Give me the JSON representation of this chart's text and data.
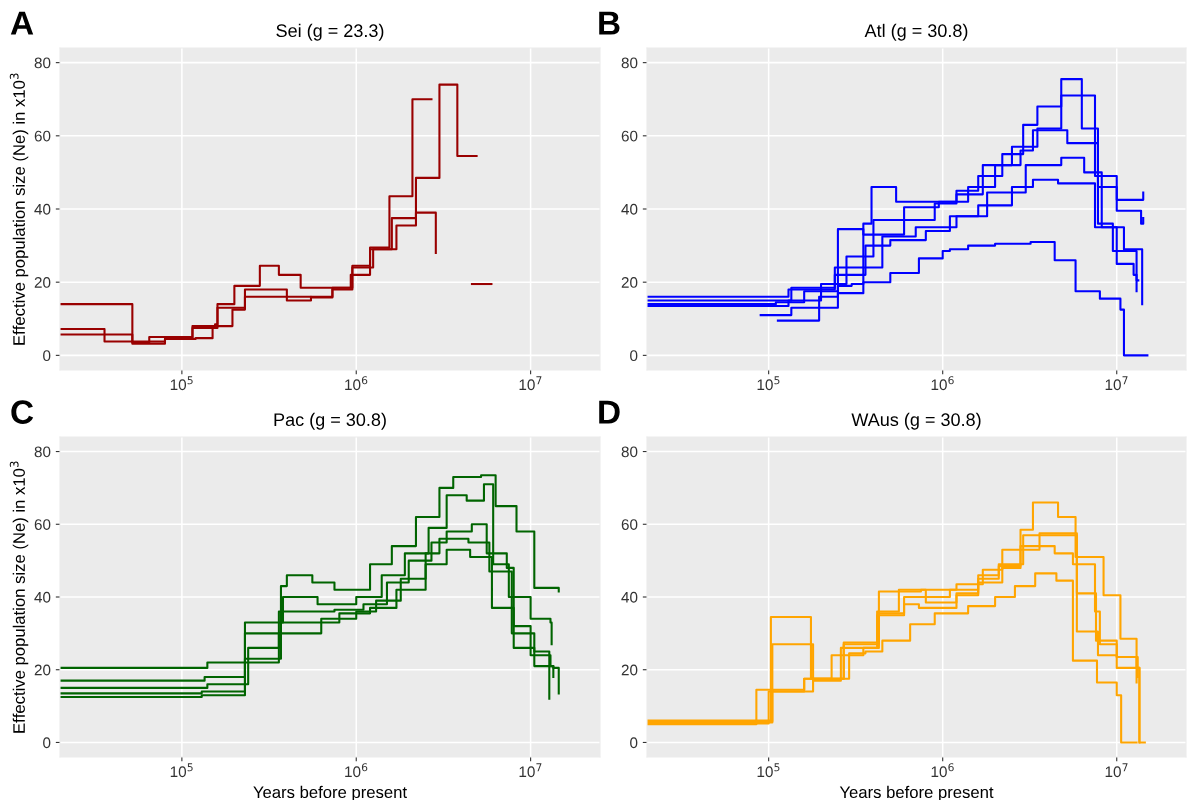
{
  "chart_data": [
    {
      "type": "step",
      "title": "Sei (g = 23.3)",
      "ylabel": "Effective population size (Ne) in x10$^{3}$",
      "annotations": [
        "A"
      ],
      "log": "x",
      "grid": true,
      "legend": false,
      "xlim": [
        20000,
        25000000
      ],
      "ylim": [
        -4,
        84
      ],
      "xticks": [
        {
          "value": 100000,
          "label": "10$^{5}$"
        },
        {
          "value": 1000000,
          "label": "10$^{6}$"
        },
        {
          "value": 10000000,
          "label": "10$^{7}$"
        }
      ],
      "yticks": [
        0,
        20,
        40,
        60,
        80
      ],
      "series": [
        {
          "color": "#990000",
          "x": [
            20000,
            52000,
            65000,
            115000,
            160000,
            200000,
            280000,
            360000,
            480000,
            730000,
            950000,
            1200000,
            1550000,
            2100000,
            2700000
          ],
          "values": [
            14,
            3.5,
            5,
            7.5,
            14,
            19,
            24.5,
            22,
            18.5,
            18.5,
            24.5,
            29.5,
            43.5,
            70,
            70
          ]
        },
        {
          "color": "#990000",
          "x": [
            20000,
            36000,
            80000,
            115000,
            155000,
            160000,
            230000,
            400000,
            550000,
            730000,
            930000,
            1200000,
            1600000,
            2200000,
            3000000,
            3800000,
            4900000
          ],
          "values": [
            7.2,
            3.8,
            4.5,
            8,
            8.5,
            13,
            18,
            15,
            16,
            18.5,
            22,
            29,
            37.5,
            48.5,
            74,
            54.5,
            54.5
          ]
        },
        {
          "color": "#990000",
          "x": [
            20000,
            52000,
            80000,
            120000,
            150000,
            195000,
            230000,
            550000,
            730000,
            950000,
            1250000,
            1700000,
            2200000,
            2860000
          ],
          "values": [
            5.7,
            3.2,
            4.5,
            4.7,
            8,
            12.5,
            16,
            15.8,
            18,
            24,
            29,
            35.5,
            39,
            28
          ]
        },
        {
          "color": "#990000",
          "x": [
            4610000,
            5960000
          ],
          "values": [
            19.5,
            19.5
          ]
        }
      ]
    },
    {
      "type": "step",
      "title": "Atl (g = 30.8)",
      "annotations": [
        "B"
      ],
      "log": "x",
      "grid": true,
      "legend": false,
      "xlim": [
        20000,
        25000000
      ],
      "ylim": [
        -4,
        84
      ],
      "xticks": [
        {
          "value": 100000,
          "label": "10$^{5}$"
        },
        {
          "value": 1000000,
          "label": "10$^{6}$"
        },
        {
          "value": 10000000,
          "label": "10$^{7}$"
        }
      ],
      "yticks": [
        0,
        20,
        40,
        60,
        80
      ],
      "series": [
        {
          "color": "#0000ff",
          "x": [
            113000,
            195000,
            250000,
            300000,
            350000,
            500000,
            730000,
            1000000,
            1100000,
            1400000,
            2000000,
            3200000,
            4400000,
            5800000,
            8000000,
            10500000,
            11000000,
            15000000
          ],
          "values": [
            9.5,
            16,
            19,
            19.5,
            20,
            22.5,
            26.5,
            28.5,
            29,
            30,
            30.5,
            31,
            26,
            17.5,
            15.5,
            12.5,
            0,
            0
          ]
        },
        {
          "color": "#0000ff",
          "x": [
            20000,
            135000,
            240000,
            350000,
            390000,
            540000,
            800000,
            1200000,
            1600000,
            2200000,
            2900000,
            3500000,
            4800000,
            6300000,
            7800000,
            9500000,
            13000000,
            13300000
          ],
          "values": [
            15,
            18.5,
            24,
            36,
            46,
            42,
            42,
            45,
            49,
            55,
            63,
            68,
            75.5,
            62,
            36,
            28.5,
            20.5,
            20.5
          ]
        },
        {
          "color": "#0000ff",
          "x": [
            20000,
            110000,
            160000,
            250000,
            350000,
            600000,
            900000,
            1200000,
            1700000,
            2500000,
            3500000,
            4800000,
            7500000,
            10000000,
            13800000,
            14200000
          ],
          "values": [
            14,
            14.5,
            17.5,
            34.5,
            33,
            37,
            41.5,
            44,
            52,
            57,
            62,
            71,
            49,
            39.5,
            36,
            37.5
          ]
        },
        {
          "color": "#0000ff",
          "x": [
            20000,
            130000,
            200000,
            280000,
            400000,
            600000,
            950000,
            1400000,
            2000000,
            2800000,
            3300000,
            5200000,
            7800000,
            10000000,
            14000000,
            14200000
          ],
          "values": [
            13.5,
            15,
            19.5,
            27,
            37,
            40.5,
            42,
            46,
            52,
            56,
            61.5,
            58,
            46,
            42.5,
            42.5,
            44.5
          ]
        },
        {
          "color": "#0000ff",
          "x": [
            20000,
            130000,
            240000,
            360000,
            500000,
            800000,
            1100000,
            1600000,
            2500000,
            3300000,
            4600000,
            7500000,
            10000000,
            12500000,
            13000000
          ],
          "values": [
            16,
            18,
            22,
            30,
            31.5,
            34,
            38,
            41,
            46,
            48,
            47,
            35,
            25,
            22,
            17.5
          ]
        },
        {
          "color": "#0000ff",
          "x": [
            90000,
            135000,
            250000,
            350000,
            450000,
            700000,
            1200000,
            1800000,
            3000000,
            4800000,
            6500000,
            8200000,
            11000000,
            14000000
          ],
          "values": [
            11,
            13,
            17,
            24,
            32.5,
            35,
            38,
            44.5,
            52,
            54,
            50,
            35,
            29,
            14
          ]
        }
      ]
    },
    {
      "type": "step",
      "title": "Pac (g = 30.8)",
      "xlabel": "Years before present",
      "ylabel": "Effective population size (Ne) in x10$^{3}$",
      "annotations": [
        "C"
      ],
      "log": "x",
      "grid": true,
      "legend": false,
      "xlim": [
        20000,
        25000000
      ],
      "ylim": [
        -4,
        84
      ],
      "xticks": [
        {
          "value": 100000,
          "label": "10$^{5}$"
        },
        {
          "value": 1000000,
          "label": "10$^{6}$"
        },
        {
          "value": 10000000,
          "label": "10$^{7}$"
        }
      ],
      "yticks": [
        0,
        20,
        40,
        60,
        80
      ],
      "series": [
        {
          "color": "#006400",
          "x": [
            20000,
            140000,
            230000,
            370000,
            400000,
            560000,
            750000,
            1200000,
            1600000,
            2200000,
            3000000,
            3600000,
            5200000,
            6300000,
            8300000,
            10500000,
            14500000
          ],
          "values": [
            20.5,
            22,
            30,
            43,
            46,
            44,
            42,
            49,
            54,
            62,
            70,
            73,
            73.5,
            65,
            58,
            42.5,
            41.5
          ]
        },
        {
          "color": "#006400",
          "x": [
            20000,
            135000,
            230000,
            380000,
            600000,
            1000000,
            1400000,
            1900000,
            2600000,
            3300000,
            4300000,
            5400000,
            6100000,
            7500000,
            10000000,
            13000000,
            13200000
          ],
          "values": [
            17,
            18,
            33,
            40,
            38,
            40,
            46,
            52,
            59,
            68,
            66.5,
            71,
            49,
            40,
            34,
            33,
            27
          ]
        },
        {
          "color": "#006400",
          "x": [
            20000,
            140000,
            240000,
            360000,
            750000,
            1100000,
            1500000,
            2000000,
            2700000,
            3300000,
            4600000,
            5600000,
            7300000,
            8000000,
            10000000,
            13000000,
            13500000
          ],
          "values": [
            15,
            16,
            26,
            36,
            36.5,
            38,
            44,
            50,
            55,
            58,
            60,
            52,
            48,
            32,
            24,
            21,
            18
          ]
        },
        {
          "color": "#006400",
          "x": [
            20000,
            130000,
            230000,
            370000,
            600000,
            800000,
            1200000,
            1700000,
            2500000,
            3300000,
            4500000,
            6000000,
            8000000,
            10500000,
            13500000,
            14500000
          ],
          "values": [
            13.5,
            14,
            23,
            33,
            33,
            35.5,
            37,
            42,
            49,
            53,
            51,
            37,
            26,
            21,
            20.5,
            13.5
          ]
        },
        {
          "color": "#006400",
          "x": [
            20000,
            130000,
            230000,
            360000,
            630000,
            1000000,
            1300000,
            1800000,
            2500000,
            3000000,
            4400000,
            5800000,
            7800000,
            10500000,
            12800000
          ],
          "values": [
            12.5,
            13,
            22,
            30,
            34,
            36,
            39,
            45,
            52,
            56,
            55,
            47,
            30,
            25,
            12
          ]
        }
      ]
    },
    {
      "type": "step",
      "title": "WAus (g = 30.8)",
      "xlabel": "Years before present",
      "annotations": [
        "D"
      ],
      "log": "x",
      "grid": true,
      "legend": false,
      "xlim": [
        20000,
        25000000
      ],
      "ylim": [
        -4,
        84
      ],
      "xticks": [
        {
          "value": 100000,
          "label": "10$^{5}$"
        },
        {
          "value": 1000000,
          "label": "10$^{6}$"
        },
        {
          "value": 10000000,
          "label": "10$^{7}$"
        }
      ],
      "yticks": [
        0,
        20,
        40,
        60,
        80
      ],
      "series": [
        {
          "color": "#ffa500",
          "x": [
            20000,
            103000,
            175000,
            270000,
            430000,
            750000,
            1200000,
            1700000,
            2200000,
            2800000,
            3300000,
            4600000,
            5800000,
            8400000,
            10500000,
            13000000,
            13500000,
            14500000
          ],
          "values": [
            6,
            34.5,
            17.5,
            27,
            41.5,
            42,
            43.5,
            47.5,
            53,
            58.5,
            66,
            62,
            51,
            40.5,
            28.5,
            20.5,
            0,
            0
          ]
        },
        {
          "color": "#ffa500",
          "x": [
            20000,
            105000,
            180000,
            260000,
            420000,
            560000,
            800000,
            1100000,
            1600000,
            2100000,
            2900000,
            5900000,
            7600000,
            10000000,
            13000000
          ],
          "values": [
            5.5,
            27,
            17,
            26,
            36,
            42,
            40,
            42,
            46,
            49,
            57,
            41,
            28,
            23.5,
            16.5
          ]
        },
        {
          "color": "#ffa500",
          "x": [
            20000,
            85000,
            105000,
            160000,
            230000,
            350000,
            430000,
            600000,
            730000,
            1200000,
            1600000,
            2100000,
            2800000,
            3600000,
            5900000,
            7800000,
            10000000,
            13500000
          ],
          "values": [
            5,
            14.5,
            14,
            17.5,
            24,
            26,
            35.5,
            38,
            37,
            40.5,
            45,
            48.5,
            53,
            57.5,
            30.5,
            24,
            20.5,
            0
          ]
        },
        {
          "color": "#ffa500",
          "x": [
            20000,
            100000,
            180000,
            230000,
            290000,
            360000,
            450000,
            650000,
            900000,
            1400000,
            2000000,
            2600000,
            3400000,
            4500000,
            5600000,
            7700000,
            10000000,
            10600000,
            13000000
          ],
          "values": [
            5.2,
            14,
            17.5,
            17.5,
            24.5,
            25,
            28,
            32.5,
            35.5,
            37.5,
            40,
            43,
            46.5,
            44.5,
            22.5,
            16.5,
            13,
            0,
            0
          ]
        },
        {
          "color": "#ffa500",
          "x": [
            20000,
            105000,
            160000,
            270000,
            420000,
            600000,
            800000,
            1200000,
            1600000,
            2200000,
            2800000,
            4400000,
            5600000,
            7500000,
            8000000,
            10000000,
            13200000
          ],
          "values": [
            5.8,
            14.5,
            17.5,
            27.5,
            35,
            40,
            38.5,
            41,
            44,
            48,
            54,
            52,
            49,
            36,
            27,
            23.5,
            18
          ]
        }
      ]
    }
  ]
}
